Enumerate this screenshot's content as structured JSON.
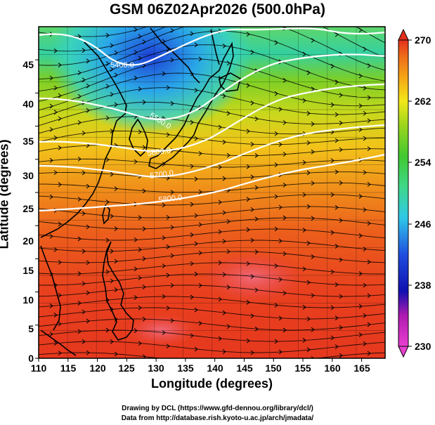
{
  "title": "GSM 06Z02Apr2026 (500.0hPa)",
  "xlabel": "Longitude (degrees)",
  "ylabel": "Latitude  (degrees)",
  "credits": {
    "line1": "Drawing by DCL (https://www.gfd-dennou.org/library/dcl/)",
    "line2": "Data from http://database.rish.kyoto-u.ac.jp/arch/jmadata/"
  },
  "axes": {
    "lon_range": [
      110,
      169
    ],
    "lat_range": [
      0,
      50
    ],
    "x_ticks": [
      "110",
      "115",
      "120",
      "125",
      "130",
      "135",
      "140",
      "145",
      "150",
      "155",
      "160",
      "165"
    ],
    "y_ticks": [
      "0",
      "5",
      "10",
      "15",
      "20",
      "25",
      "30",
      "35",
      "40",
      "45"
    ]
  },
  "colorbar": {
    "range": [
      230,
      270
    ],
    "labels": [
      "230",
      "238",
      "246",
      "254",
      "262",
      "270"
    ],
    "colors": [
      "#e83fd0",
      "#c01ab8",
      "#1010b0",
      "#1f4ee0",
      "#2fc8e8",
      "#3fd88a",
      "#40c830",
      "#9ad51c",
      "#f2e81a",
      "#f5a415",
      "#ee6a1a",
      "#e4301c"
    ]
  },
  "contours": [
    {
      "label": "5400.0"
    },
    {
      "label": "5500.0"
    },
    {
      "label": "5600.0"
    },
    {
      "label": "5700.0"
    },
    {
      "label": "5800.0"
    }
  ],
  "colors": {
    "contour": "#ffffff",
    "coast": "#000000",
    "streamline": "#000000"
  }
}
